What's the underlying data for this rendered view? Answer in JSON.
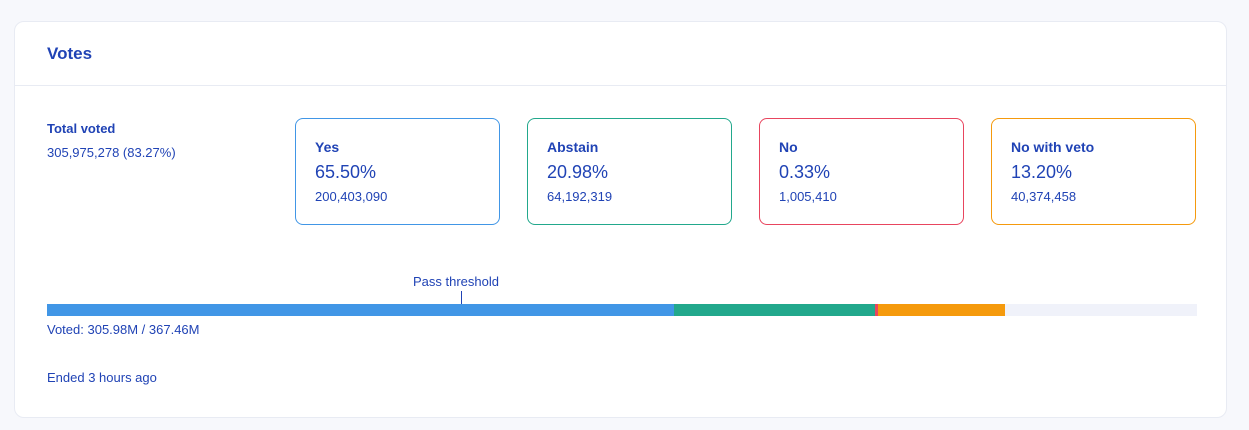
{
  "card": {
    "title": "Votes"
  },
  "total": {
    "label": "Total voted",
    "value": "305,975,278 (83.27%)"
  },
  "options": [
    {
      "label": "Yes",
      "percent": "65.50%",
      "count": "200,403,090",
      "color": "#4196e6",
      "fraction": 0.5455
    },
    {
      "label": "Abstain",
      "percent": "20.98%",
      "count": "64,192,319",
      "color": "#22a88c",
      "fraction": 0.1747
    },
    {
      "label": "No",
      "percent": "0.33%",
      "count": "1,005,410",
      "color": "#e8455e",
      "fraction": 0.0027
    },
    {
      "label": "No with veto",
      "percent": "13.20%",
      "count": "40,374,458",
      "color": "#f59a0d",
      "fraction": 0.1099
    }
  ],
  "threshold": {
    "label": "Pass threshold",
    "fraction": 0.3626
  },
  "bar": {
    "track_color": "#f0f2fa"
  },
  "voted_text": "Voted: 305.98M / 367.46M",
  "status_text": "Ended 3 hours ago"
}
